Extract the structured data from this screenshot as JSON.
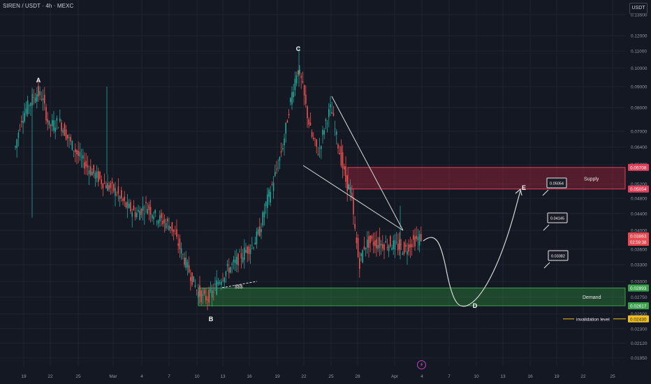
{
  "header": {
    "symbol": "SIREN / USDT · 4h · MEXC",
    "currency": "USDT"
  },
  "chart_data": {
    "type": "candlestick",
    "y_scale": "log",
    "ylim": [
      0.0188,
      0.141
    ],
    "y_ticks": [
      "0.13500",
      "0.12000",
      "0.11000",
      "0.10000",
      "0.09000",
      "0.08000",
      "0.07000",
      "0.06400",
      "0.05800",
      "0.05200",
      "0.04800",
      "0.04400",
      "0.04000",
      "0.03600",
      "0.03300",
      "0.03000",
      "0.02750",
      "0.02500",
      "0.02300",
      "0.02120",
      "0.01950"
    ],
    "x_ticks": [
      "19",
      "22",
      "25",
      "Mar",
      "4",
      "7",
      "10",
      "13",
      "16",
      "19",
      "22",
      "25",
      "28",
      "Apr",
      "4",
      "7",
      "10",
      "13",
      "16",
      "19",
      "22",
      "25"
    ],
    "wave_labels": {
      "A": "A",
      "B": "B",
      "C": "C",
      "D": "D",
      "E": "E"
    },
    "zones": {
      "supply": {
        "label": "Supply",
        "top": 0.05708,
        "bottom": 0.05054,
        "top_text": "0.05708",
        "bottom_text": "0.05054"
      },
      "demand": {
        "label": "Demand",
        "top": 0.02893,
        "bottom": 0.02617,
        "top_text": "0.02893",
        "bottom_text": "0.02617"
      }
    },
    "targets": [
      {
        "label": "0.05054"
      },
      {
        "label": "0.04145"
      },
      {
        "label": "0.03382"
      }
    ],
    "liquidity_label": "$$$",
    "invalidation": {
      "label": "invalidation level",
      "value": 0.0243,
      "text": "0.02430"
    },
    "current_price": {
      "value": 0.03863,
      "text": "0.03863",
      "countdown": "02:59:38"
    },
    "colors": {
      "up": "#26a69a",
      "down": "#ef5350",
      "supply": "#e0405a",
      "demand": "#3aa04a",
      "invalidation": "#f0c020",
      "current": "#e8484f"
    }
  }
}
